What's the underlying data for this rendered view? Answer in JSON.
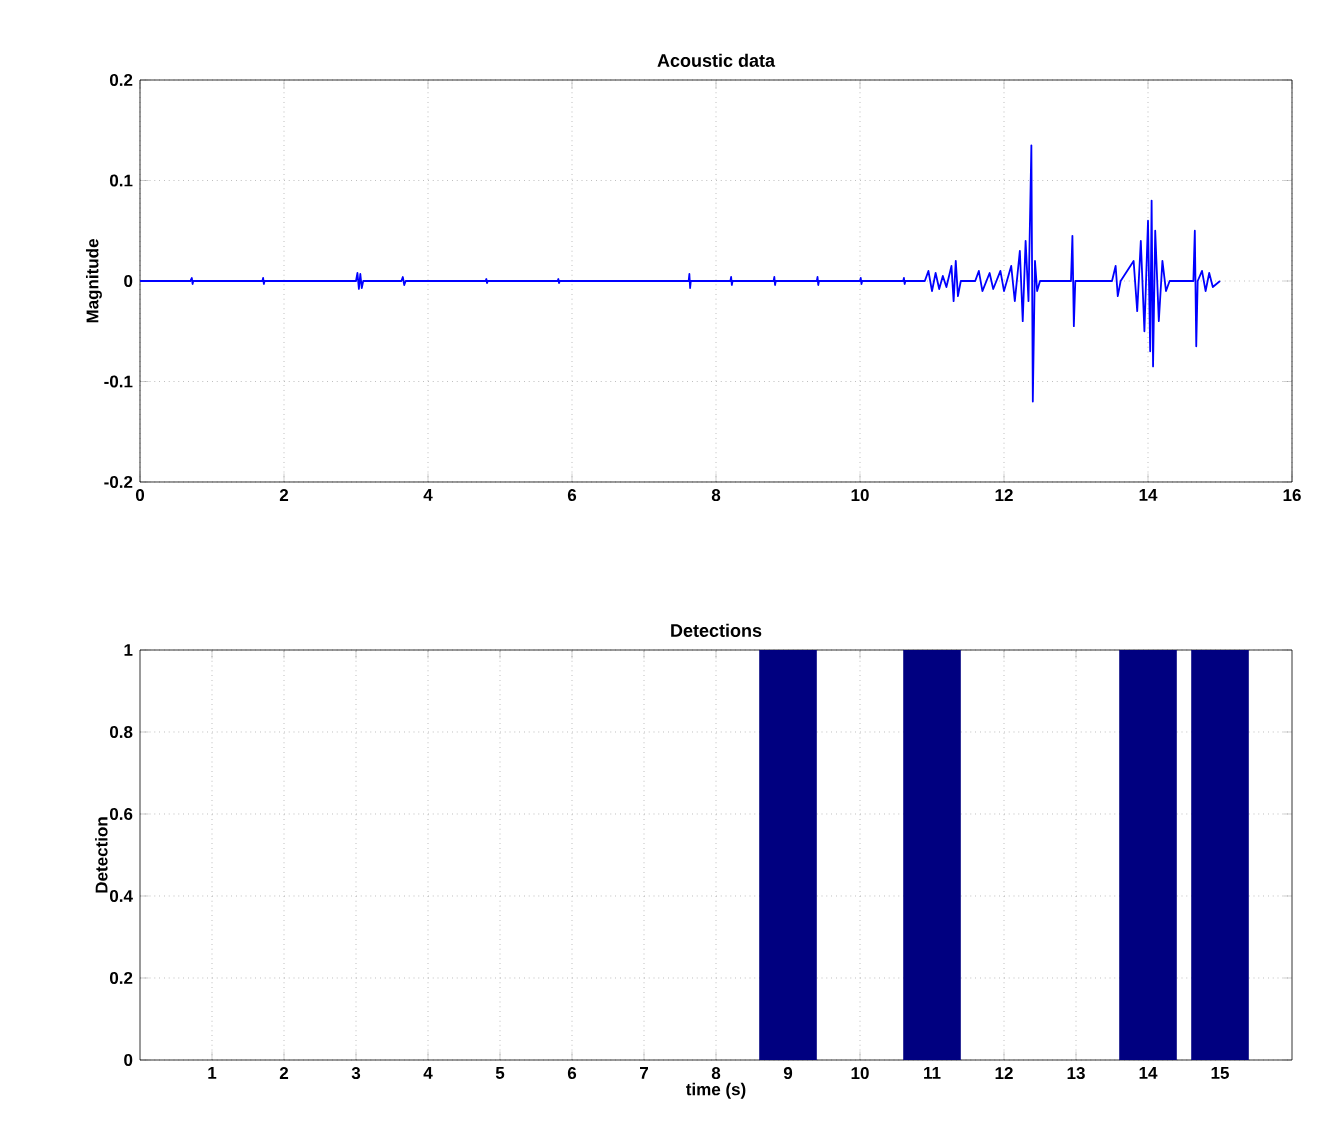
{
  "chart_data": [
    {
      "type": "line",
      "title": "Acoustic data",
      "ylabel": "Magnitude",
      "xlim": [
        0,
        16
      ],
      "ylim": [
        -0.2,
        0.2
      ],
      "xticks": [
        0,
        2,
        4,
        6,
        8,
        10,
        12,
        14,
        16
      ],
      "yticks": [
        -0.2,
        -0.1,
        0,
        0.1,
        0.2
      ],
      "grid": true,
      "series": [
        {
          "color": "#0000ff",
          "x": [
            0,
            0.7,
            0.72,
            0.73,
            0.74,
            1.7,
            1.71,
            1.72,
            1.73,
            3.0,
            3.02,
            3.04,
            3.06,
            3.08,
            3.1,
            3.63,
            3.65,
            3.67,
            3.69,
            4.8,
            4.81,
            4.82,
            4.83,
            5.8,
            5.81,
            5.82,
            5.83,
            7.62,
            7.63,
            7.64,
            7.65,
            8.2,
            8.21,
            8.22,
            8.23,
            8.8,
            8.81,
            8.82,
            8.83,
            9.4,
            9.41,
            9.42,
            9.43,
            10.0,
            10.01,
            10.02,
            10.03,
            10.6,
            10.61,
            10.62,
            10.63,
            10.9,
            10.95,
            11.0,
            11.05,
            11.1,
            11.15,
            11.2,
            11.27,
            11.3,
            11.33,
            11.36,
            11.4,
            11.6,
            11.65,
            11.7,
            11.8,
            11.85,
            11.95,
            12.0,
            12.1,
            12.15,
            12.22,
            12.26,
            12.3,
            12.34,
            12.38,
            12.4,
            12.43,
            12.46,
            12.5,
            12.93,
            12.95,
            12.97,
            12.99,
            13.5,
            13.55,
            13.58,
            13.62,
            13.8,
            13.85,
            13.9,
            13.95,
            14.0,
            14.03,
            14.05,
            14.07,
            14.1,
            14.15,
            14.2,
            14.25,
            14.3,
            14.63,
            14.65,
            14.67,
            14.69,
            14.75,
            14.8,
            14.85,
            14.9,
            15.0
          ],
          "values": [
            0,
            0,
            0.003,
            -0.003,
            0,
            0,
            0.003,
            -0.003,
            0,
            0,
            0.008,
            -0.008,
            0.007,
            -0.007,
            0,
            0,
            0.004,
            -0.004,
            0,
            0,
            0.002,
            -0.002,
            0,
            0,
            0.002,
            -0.002,
            0,
            0,
            0.007,
            -0.007,
            0,
            0,
            0.004,
            -0.004,
            0,
            0,
            0.004,
            -0.004,
            0,
            0,
            0.004,
            -0.004,
            0,
            0,
            0.003,
            -0.003,
            0,
            0,
            0.003,
            -0.003,
            0,
            0,
            0.01,
            -0.01,
            0.008,
            -0.008,
            0.005,
            -0.006,
            0.015,
            -0.02,
            0.02,
            -0.015,
            0,
            0,
            0.01,
            -0.01,
            0.008,
            -0.008,
            0.01,
            -0.01,
            0.015,
            -0.02,
            0.03,
            -0.04,
            0.04,
            -0.02,
            0.135,
            -0.12,
            0.02,
            -0.01,
            0,
            0,
            0.045,
            -0.045,
            0,
            0,
            0.015,
            -0.015,
            0,
            0.02,
            -0.03,
            0.04,
            -0.05,
            0.06,
            -0.07,
            0.08,
            -0.085,
            0.05,
            -0.04,
            0.02,
            -0.01,
            0,
            0,
            0.05,
            -0.065,
            0,
            0.01,
            -0.01,
            0.008,
            -0.006,
            0
          ]
        }
      ]
    },
    {
      "type": "bar",
      "title": "Detections",
      "xlabel": "time (s)",
      "ylabel": "Detection",
      "ylim": [
        0,
        1
      ],
      "yticks": [
        0,
        0.2,
        0.4,
        0.6,
        0.8,
        1
      ],
      "grid": true,
      "categories": [
        "1",
        "2",
        "3",
        "4",
        "5",
        "6",
        "7",
        "8",
        "9",
        "10",
        "11",
        "12",
        "13",
        "14",
        "15"
      ],
      "series": [
        {
          "color": "#000080",
          "values": [
            0,
            0,
            0,
            0,
            0,
            0,
            0,
            0,
            1,
            0,
            1,
            0,
            0,
            1,
            1
          ]
        }
      ]
    }
  ]
}
